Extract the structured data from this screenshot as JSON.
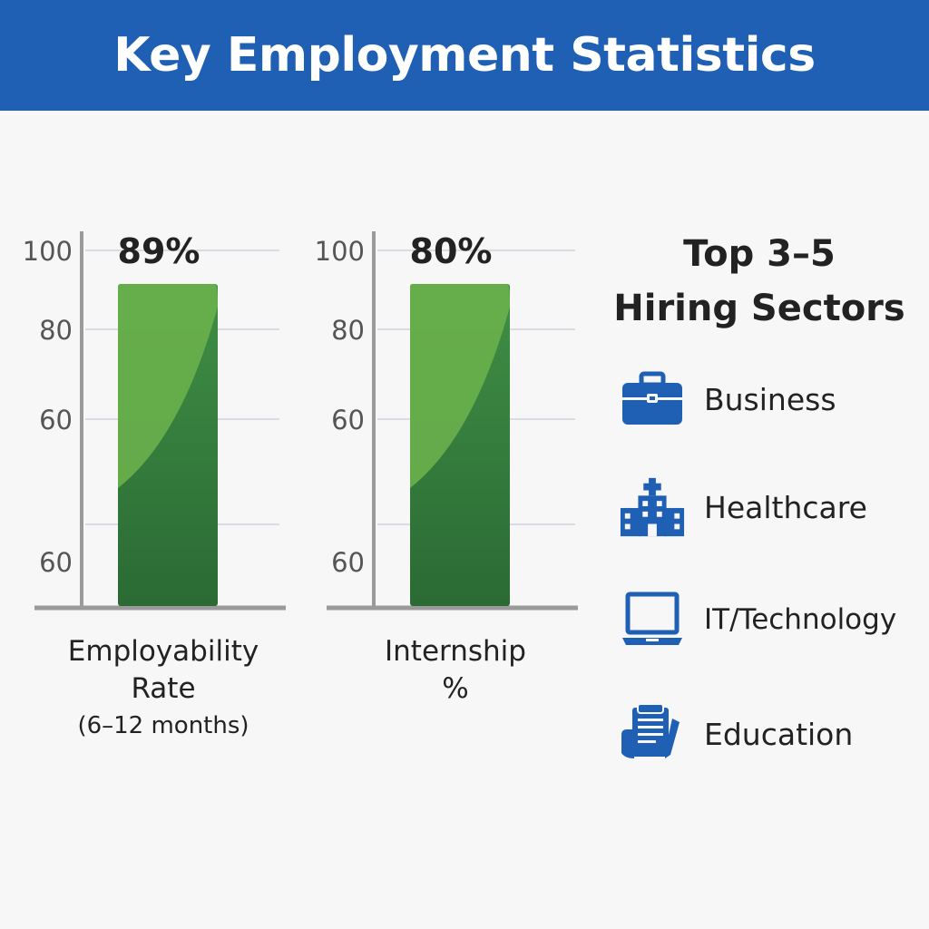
{
  "header": {
    "title": "Key Employment Statistics"
  },
  "chart_data": [
    {
      "type": "bar",
      "categories": [
        "Employability Rate (6–12 months)"
      ],
      "values": [
        89
      ],
      "value_label": "89%",
      "ytick_labels": [
        "100",
        "80",
        "60",
        "60"
      ],
      "ylim": [
        0,
        100
      ],
      "grid": true,
      "label": {
        "line1": "Employability",
        "line2": "Rate",
        "line3": "(6–12 months)"
      }
    },
    {
      "type": "bar",
      "categories": [
        "Internship %"
      ],
      "values": [
        80
      ],
      "value_label": "80%",
      "ytick_labels": [
        "100",
        "80",
        "60",
        "60"
      ],
      "ylim": [
        0,
        100
      ],
      "grid": true,
      "label": {
        "line1": "Internship",
        "line2": "%",
        "line3": ""
      }
    }
  ],
  "sectors": {
    "title_line1": "Top 3–5",
    "title_line2": "Hiring Sectors",
    "items": [
      {
        "label": "Business",
        "icon": "briefcase-icon"
      },
      {
        "label": "Healthcare",
        "icon": "hospital-building-icon"
      },
      {
        "label": "IT/Technology",
        "icon": "laptop-icon"
      },
      {
        "label": "Education",
        "icon": "document-pencil-icon"
      }
    ]
  },
  "colors": {
    "header_bg": "#1f5fb4",
    "bar_light": "#6ab04c",
    "bar_dark": "#2b6a34",
    "icon_blue": "#1f5fb4",
    "axis": "#9a9a9a"
  }
}
